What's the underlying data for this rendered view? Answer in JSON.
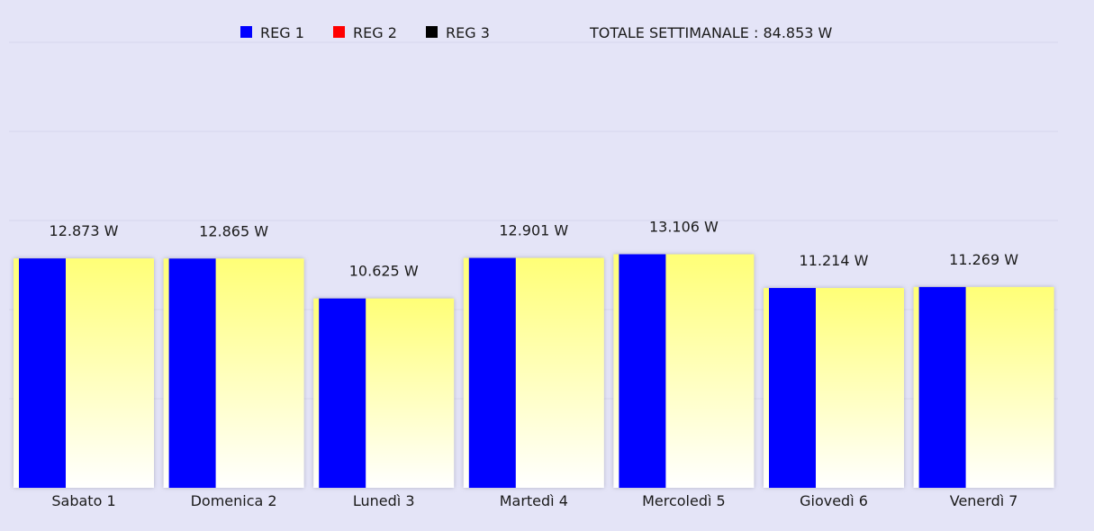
{
  "legend": [
    {
      "label": "REG 1",
      "color": "#0000ff"
    },
    {
      "label": "REG 2",
      "color": "#ff0000"
    },
    {
      "label": "REG 3",
      "color": "#000000"
    }
  ],
  "total_label": "TOTALE SETTIMANALE :  84.853 W",
  "colors": {
    "background": "#e4e4f7",
    "grid": "#d6d6ec",
    "bar_fill_top": "#ffff77",
    "bar_fill_bottom": "#ffffff",
    "reg1_bar": "#0000ff"
  },
  "chart_data": {
    "type": "bar",
    "categories": [
      "Sabato 1",
      "Domenica 2",
      "Lunedì 3",
      "Martedì 4",
      "Mercoledì 5",
      "Giovedì 6",
      "Venerdì 7"
    ],
    "totals": [
      12873,
      12865,
      10625,
      12901,
      13106,
      11214,
      11269
    ],
    "total_labels": [
      "12.873 W",
      "12.865 W",
      "10.625 W",
      "12.901 W",
      "13.106 W",
      "11.214 W",
      "11.269 W"
    ],
    "series": [
      {
        "name": "REG 1",
        "values": [
          12873,
          12865,
          10625,
          12901,
          13106,
          11214,
          11269
        ]
      },
      {
        "name": "REG 2",
        "values": [
          0,
          0,
          0,
          0,
          0,
          0,
          0
        ]
      },
      {
        "name": "REG 3",
        "values": [
          0,
          0,
          0,
          0,
          0,
          0,
          0
        ]
      }
    ],
    "ylim": [
      0,
      25000
    ],
    "grid": true,
    "legend_position": "top"
  }
}
